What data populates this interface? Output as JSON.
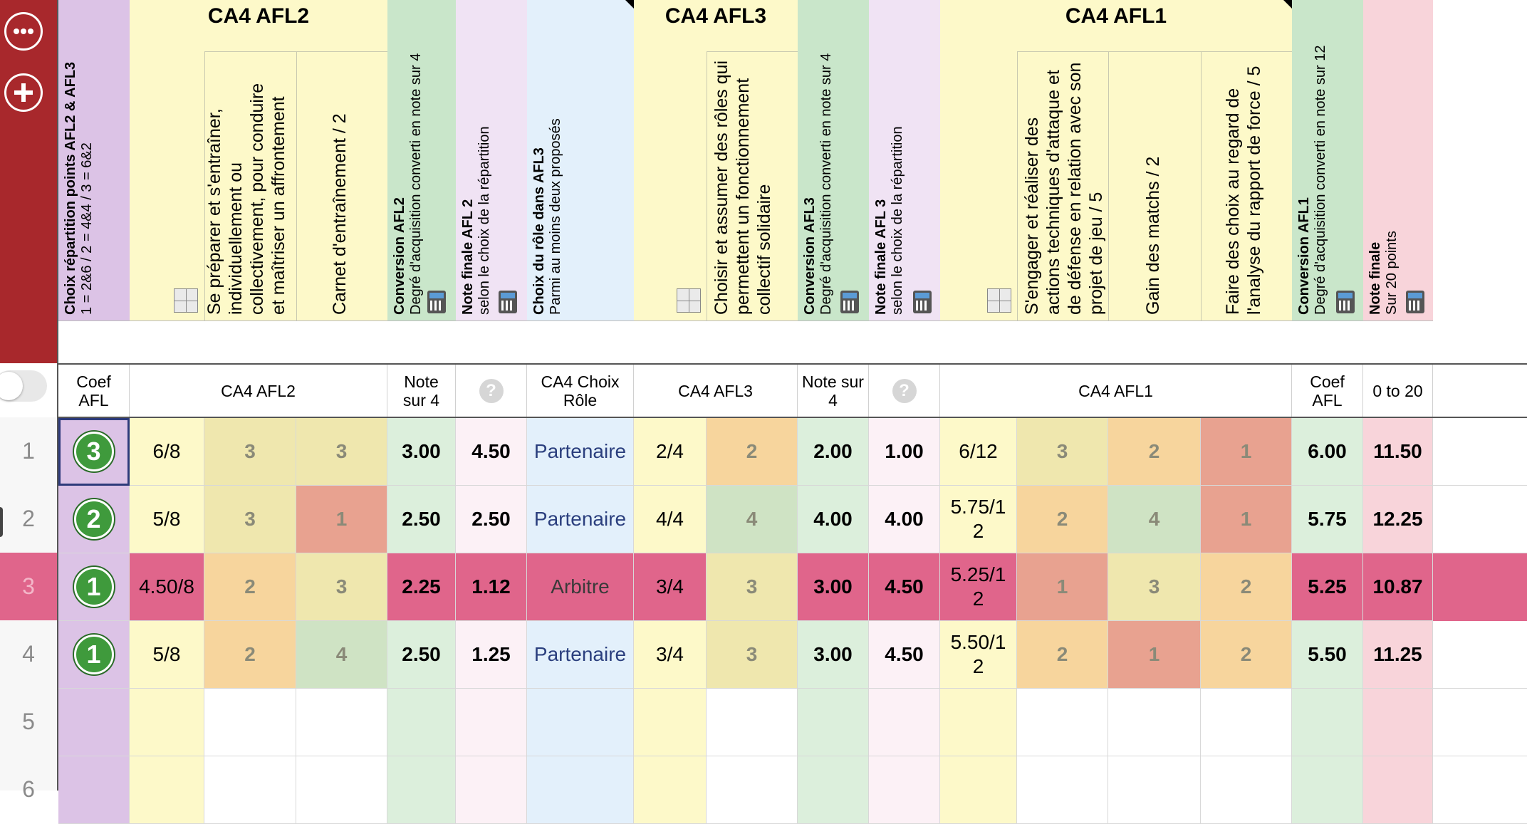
{
  "colors": {
    "rail": "#a8282c",
    "purple": "#dcc3e6",
    "yellow": "#fdf9c9",
    "green_head": "#c9e6ca",
    "pink_head": "#f0e3f4",
    "blue_head": "#e3f0fb",
    "pink_final": "#f8d4da",
    "highlight_row": "#e0658b"
  },
  "toolbar": {
    "more_icon": "ellipsis-icon",
    "add_icon": "plus-icon"
  },
  "header": {
    "groups": {
      "afl2": "CA4 AFL2",
      "afl3": "CA4 AFL3",
      "afl1": "CA4 AFL1"
    },
    "choix": {
      "title": "Choix répartition points AFL2 & AFL3",
      "sub": "1 = 2&6 / 2 = 4&4 / 3 = 6&2"
    },
    "afl2_c1": [
      "Se préparer et s'entraîner,",
      "individuellement ou",
      "collectivement, pour conduire",
      "et maîtriser un affrontement"
    ],
    "afl2_c2": "Carnet d'entraînement / 2",
    "conv_afl2": {
      "title": "Conversion AFL2",
      "sub": "Degré d'acquisition converti en note sur 4"
    },
    "note_afl2": {
      "title": "Note finale AFL 2",
      "sub": "selon le choix de la répartition"
    },
    "role": {
      "title": "Choix du rôle dans AFL3",
      "sub": "Parmi au moins deux proposés"
    },
    "afl3_c1": [
      "Choisir et assumer des rôles qui",
      "permettent un fonctionnement",
      "collectif solidaire"
    ],
    "conv_afl3": {
      "title": "Conversion AFL3",
      "sub": "Degré d'acquisition converti en note sur 4"
    },
    "note_afl3": {
      "title": "Note finale AFL 3",
      "sub": "selon le choix de la répartition"
    },
    "afl1_c1": [
      "S'engager et réaliser des",
      "actions techniques d'attaque et",
      "de défense en relation avec son",
      "projet de jeu / 5"
    ],
    "afl1_c2": "Gain des matchs / 2",
    "afl1_c3": [
      "Faire des choix au regard de",
      "l'analyse du rapport de force / 5"
    ],
    "conv_afl1": {
      "title": "Conversion AFL1",
      "sub": "Degré d'acquisition converti en note sur 12"
    },
    "final": {
      "title": "Note finale",
      "sub": "Sur 20 points"
    }
  },
  "labels": {
    "coef_afl": [
      "Coef",
      "AFL"
    ],
    "afl2": "CA4 AFL2",
    "note_sur4": [
      "Note",
      "sur 4"
    ],
    "choix_role": [
      "CA4 Choix",
      "Rôle"
    ],
    "afl3": "CA4 AFL3",
    "note_sur4_b": [
      "Note sur",
      "4"
    ],
    "afl1": "CA4 AFL1",
    "coef_afl_b": [
      "Coef",
      "AFL"
    ],
    "range": "0 to 20",
    "qmark": "?"
  },
  "rows": [
    {
      "num": "1",
      "choix": "3",
      "afl2": "6/8",
      "a2c1": "3",
      "a2c2": "3",
      "conv2": "3.00",
      "note2": "4.50",
      "role": "Partenaire",
      "afl3": "2/4",
      "a3c1": "2",
      "conv3": "2.00",
      "note3": "1.00",
      "afl1": "6/12",
      "a1c1": "3",
      "a1c2": "2",
      "a1c3": "1",
      "conv1": "6.00",
      "final": "11.50"
    },
    {
      "num": "2",
      "choix": "2",
      "afl2": "5/8",
      "a2c1": "3",
      "a2c2": "1",
      "conv2": "2.50",
      "note2": "2.50",
      "role": "Partenaire",
      "afl3": "4/4",
      "a3c1": "4",
      "conv3": "4.00",
      "note3": "4.00",
      "afl1": "5.75/12",
      "a1c1": "2",
      "a1c2": "4",
      "a1c3": "1",
      "conv1": "5.75",
      "final": "12.25"
    },
    {
      "num": "3",
      "choix": "1",
      "afl2": "4.50/8",
      "a2c1": "2",
      "a2c2": "3",
      "conv2": "2.25",
      "note2": "1.12",
      "role": "Arbitre",
      "afl3": "3/4",
      "a3c1": "3",
      "conv3": "3.00",
      "note3": "4.50",
      "afl1": "5.25/12",
      "a1c1": "1",
      "a1c2": "3",
      "a1c3": "2",
      "conv1": "5.25",
      "final": "10.87"
    },
    {
      "num": "4",
      "choix": "1",
      "afl2": "5/8",
      "a2c1": "2",
      "a2c2": "4",
      "conv2": "2.50",
      "note2": "1.25",
      "role": "Partenaire",
      "afl3": "3/4",
      "a3c1": "3",
      "conv3": "3.00",
      "note3": "4.50",
      "afl1": "5.50/12",
      "a1c1": "2",
      "a1c2": "1",
      "a1c3": "2",
      "conv1": "5.50",
      "final": "11.25"
    },
    {
      "num": "5"
    },
    {
      "num": "6"
    }
  ]
}
